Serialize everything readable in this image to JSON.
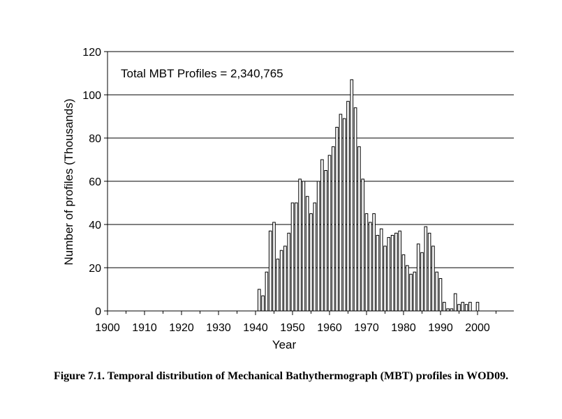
{
  "chart_data": {
    "type": "bar",
    "title": "",
    "annotation": "Total MBT Profiles = 2,340,765",
    "xlabel": "Year",
    "ylabel": "Number of profiles (Thousands)",
    "xlim": [
      1900,
      2008
    ],
    "ylim": [
      0,
      120
    ],
    "xticks": [
      1900,
      1910,
      1920,
      1930,
      1940,
      1950,
      1960,
      1970,
      1980,
      1990,
      2000
    ],
    "yticks": [
      0,
      20,
      40,
      60,
      80,
      100,
      120
    ],
    "grid": "horizontal",
    "legend": "none",
    "x": [
      1941,
      1942,
      1943,
      1944,
      1945,
      1946,
      1947,
      1948,
      1949,
      1950,
      1951,
      1952,
      1953,
      1954,
      1955,
      1956,
      1957,
      1958,
      1959,
      1960,
      1961,
      1962,
      1963,
      1964,
      1965,
      1966,
      1967,
      1968,
      1969,
      1970,
      1971,
      1972,
      1973,
      1974,
      1975,
      1976,
      1977,
      1978,
      1979,
      1980,
      1981,
      1982,
      1983,
      1984,
      1985,
      1986,
      1987,
      1988,
      1989,
      1990,
      1991,
      1992,
      1993,
      1994,
      1995,
      1996,
      1997,
      1998,
      1999,
      2000,
      2001
    ],
    "values": [
      10,
      7,
      18,
      37,
      41,
      24,
      28,
      30,
      36,
      50,
      50,
      61,
      60,
      53,
      45,
      50,
      60,
      70,
      65,
      72,
      76,
      85,
      91,
      89,
      97,
      107,
      94,
      76,
      61,
      45,
      41,
      45,
      35,
      38,
      30,
      34,
      35,
      36,
      37,
      26,
      21,
      17,
      18,
      31,
      27,
      39,
      36,
      30,
      18,
      15,
      4,
      1,
      1,
      8,
      3,
      4,
      3,
      4,
      0,
      4,
      0
    ]
  },
  "caption": "Figure 7.1. Temporal distribution of Mechanical Bathythermograph (MBT) profiles in WOD09."
}
